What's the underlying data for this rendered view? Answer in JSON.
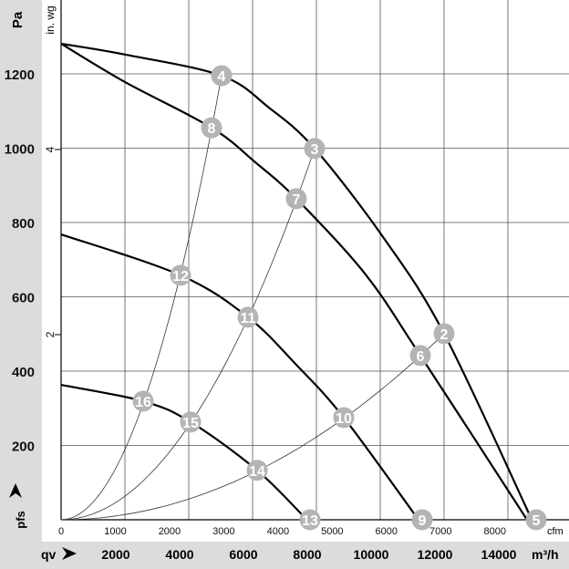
{
  "chart_data": {
    "type": "line",
    "title": "",
    "ylabel": "Pa",
    "ylabel_secondary": "in. wg",
    "xlabel": "qv",
    "xunit": "m³/h",
    "xunit_secondary": "cfm",
    "yname": "pfs",
    "xlim": [
      0,
      15900
    ],
    "ylim": [
      0,
      1400
    ],
    "grid": true,
    "x_ticks": [
      "2000",
      "4000",
      "6000",
      "8000",
      "10000",
      "12000",
      "14000"
    ],
    "x_tick_values": [
      2000,
      4000,
      6000,
      8000,
      10000,
      12000,
      14000
    ],
    "cfm_ticks": [
      "0",
      "1000",
      "2000",
      "3000",
      "4000",
      "5000",
      "6000",
      "7000",
      "8000"
    ],
    "cfm_tick_values": [
      0,
      1000,
      2000,
      3000,
      4000,
      5000,
      6000,
      7000,
      8000
    ],
    "y_ticks": [
      "200",
      "400",
      "600",
      "800",
      "1000",
      "1200"
    ],
    "y_tick_values": [
      200,
      400,
      600,
      800,
      1000,
      1200
    ],
    "inwg_ticks": [
      "2",
      "4"
    ],
    "inwg_tick_values": [
      2,
      4
    ],
    "series": [
      {
        "name": "curve-1",
        "points": [
          [
            0,
            1281
          ],
          [
            2000,
            1252
          ],
          [
            5029,
            1195
          ],
          [
            6514,
            1109
          ],
          [
            7943,
            999
          ],
          [
            10086,
            761
          ],
          [
            12000,
            501
          ],
          [
            14750,
            0
          ]
        ]
      },
      {
        "name": "curve-2",
        "points": [
          [
            0,
            1281
          ],
          [
            2000,
            1178
          ],
          [
            4714,
            1055
          ],
          [
            6086,
            962
          ],
          [
            7371,
            864
          ],
          [
            9514,
            663
          ],
          [
            11257,
            442
          ],
          [
            14600,
            0
          ]
        ]
      },
      {
        "name": "curve-3",
        "points": [
          [
            0,
            768
          ],
          [
            3743,
            658
          ],
          [
            5857,
            545
          ],
          [
            7371,
            417
          ],
          [
            8857,
            275
          ],
          [
            11200,
            0
          ]
        ]
      },
      {
        "name": "curve-4",
        "points": [
          [
            0,
            363
          ],
          [
            2571,
            319
          ],
          [
            4057,
            263
          ],
          [
            6143,
            133
          ],
          [
            7700,
            0
          ]
        ]
      }
    ],
    "system_curves": [
      {
        "name": "system-curve-a",
        "through": [
          5029,
          1195
        ]
      },
      {
        "name": "system-curve-b",
        "through": [
          7943,
          999
        ]
      },
      {
        "name": "system-curve-c",
        "through": [
          12000,
          501
        ]
      }
    ],
    "operating_points": [
      {
        "label": "2",
        "q": 12000,
        "p": 501
      },
      {
        "label": "3",
        "q": 7943,
        "p": 999
      },
      {
        "label": "4",
        "q": 5029,
        "p": 1195
      },
      {
        "label": "5",
        "q": 14886,
        "p": 0
      },
      {
        "label": "6",
        "q": 11257,
        "p": 442
      },
      {
        "label": "7",
        "q": 7371,
        "p": 864
      },
      {
        "label": "8",
        "q": 4714,
        "p": 1055
      },
      {
        "label": "9",
        "q": 11314,
        "p": 0
      },
      {
        "label": "10",
        "q": 8857,
        "p": 275
      },
      {
        "label": "11",
        "q": 5857,
        "p": 545
      },
      {
        "label": "12",
        "q": 3743,
        "p": 658
      },
      {
        "label": "13",
        "q": 7800,
        "p": 0
      },
      {
        "label": "14",
        "q": 6143,
        "p": 133
      },
      {
        "label": "15",
        "q": 4057,
        "p": 263
      },
      {
        "label": "16",
        "q": 2571,
        "p": 319
      }
    ],
    "colors": {
      "band": "#dcdcdc",
      "grid": "#555555",
      "curve": "#000000",
      "marker": "#b4b4b4"
    }
  }
}
